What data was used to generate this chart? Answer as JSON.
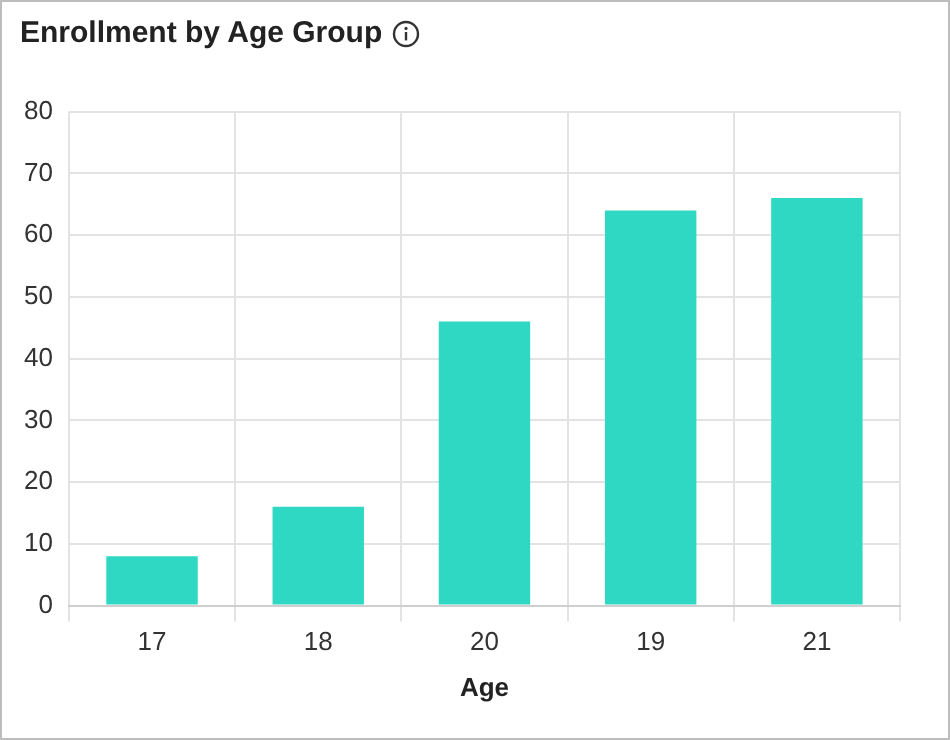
{
  "chart_data": {
    "type": "bar",
    "title": "Enrollment by Age Group",
    "xlabel": "Age",
    "categories": [
      "17",
      "18",
      "20",
      "19",
      "21"
    ],
    "values": [
      8,
      16,
      46,
      64,
      66
    ],
    "color": "#2ed8c3",
    "ylim": [
      0,
      80
    ],
    "yticks": [
      0,
      10,
      20,
      30,
      40,
      50,
      60,
      70,
      80
    ],
    "grid": true,
    "legend": false
  }
}
